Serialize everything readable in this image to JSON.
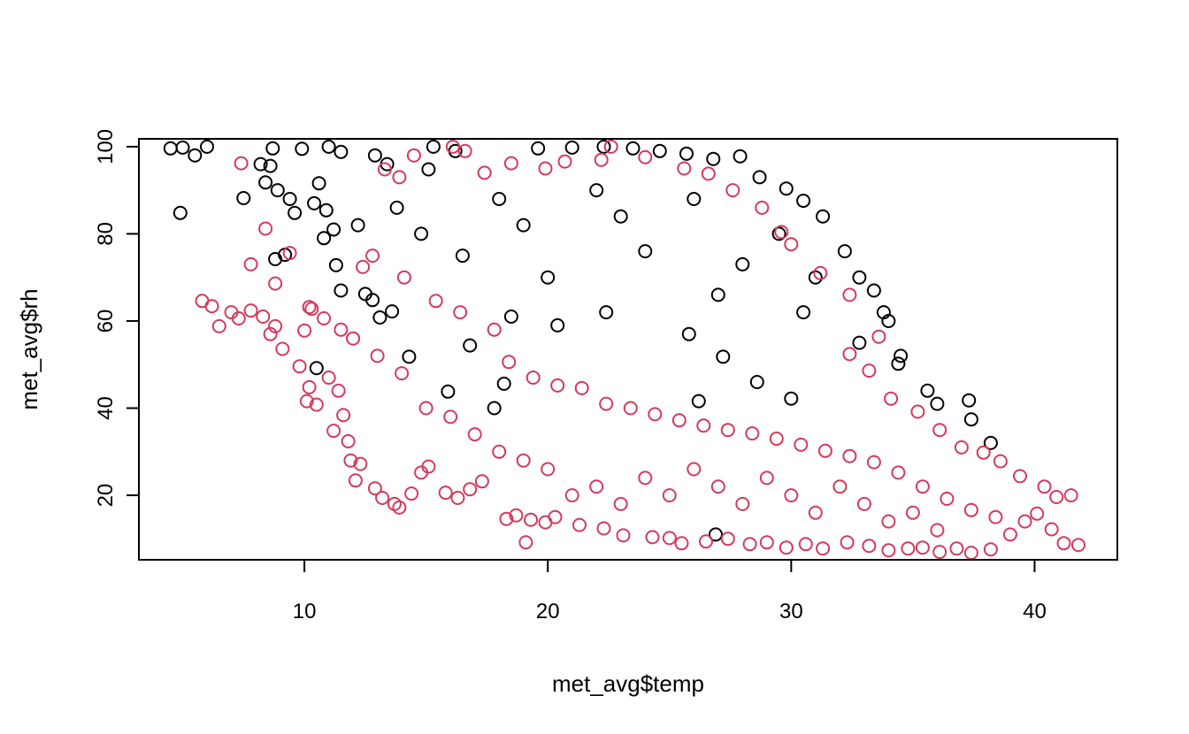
{
  "chart_data": {
    "type": "scatter",
    "title": "",
    "xlabel": "met_avg$temp",
    "ylabel": "met_avg$rh",
    "xlim": [
      3.2,
      43.4
    ],
    "ylim": [
      5.2,
      101.8
    ],
    "x_ticks": [
      10,
      20,
      30,
      40
    ],
    "y_ticks": [
      20,
      40,
      60,
      80,
      100
    ],
    "grid": false,
    "legend": "none",
    "marker": "open-circle",
    "series": [
      {
        "color": "#000000",
        "points": [
          [
            4.5,
            99.6
          ],
          [
            5.0,
            99.8
          ],
          [
            5.5,
            98.0
          ],
          [
            6.0,
            100.0
          ],
          [
            4.9,
            84.8
          ],
          [
            7.5,
            88.2
          ],
          [
            8.2,
            96.0
          ],
          [
            8.7,
            99.6
          ],
          [
            8.6,
            95.6
          ],
          [
            8.4,
            91.8
          ],
          [
            8.9,
            90.0
          ],
          [
            9.4,
            88.0
          ],
          [
            9.9,
            99.5
          ],
          [
            9.6,
            84.8
          ],
          [
            8.8,
            74.2
          ],
          [
            9.2,
            75.2
          ],
          [
            10.4,
            87.0
          ],
          [
            10.6,
            91.6
          ],
          [
            11.0,
            100.0
          ],
          [
            11.5,
            98.8
          ],
          [
            10.9,
            85.4
          ],
          [
            11.2,
            81.0
          ],
          [
            10.8,
            79.0
          ],
          [
            11.3,
            72.8
          ],
          [
            11.5,
            67.0
          ],
          [
            12.5,
            66.2
          ],
          [
            12.8,
            64.8
          ],
          [
            13.1,
            60.8
          ],
          [
            13.6,
            62.2
          ],
          [
            10.5,
            49.2
          ],
          [
            12.9,
            98.0
          ],
          [
            13.4,
            96.0
          ],
          [
            15.3,
            100.0
          ],
          [
            16.2,
            99.0
          ],
          [
            14.3,
            51.8
          ],
          [
            15.9,
            43.8
          ],
          [
            16.8,
            54.4
          ],
          [
            15.1,
            94.8
          ],
          [
            18.2,
            45.6
          ],
          [
            17.8,
            40.0
          ],
          [
            19.6,
            99.6
          ],
          [
            21.0,
            99.8
          ],
          [
            22.3,
            100.0
          ],
          [
            23.5,
            99.6
          ],
          [
            24.6,
            99.0
          ],
          [
            25.7,
            98.4
          ],
          [
            26.8,
            97.2
          ],
          [
            27.9,
            97.8
          ],
          [
            28.7,
            93.0
          ],
          [
            29.8,
            90.4
          ],
          [
            30.5,
            87.6
          ],
          [
            31.3,
            84.0
          ],
          [
            32.2,
            76.0
          ],
          [
            32.8,
            70.0
          ],
          [
            33.4,
            67.0
          ],
          [
            33.8,
            62.0
          ],
          [
            34.0,
            60.0
          ],
          [
            34.5,
            52.0
          ],
          [
            34.4,
            50.2
          ],
          [
            35.6,
            44.0
          ],
          [
            36.0,
            41.0
          ],
          [
            37.3,
            41.8
          ],
          [
            37.4,
            37.4
          ],
          [
            38.2,
            32.0
          ],
          [
            30.0,
            42.2
          ],
          [
            27.2,
            51.8
          ],
          [
            25.8,
            57.0
          ],
          [
            26.2,
            41.6
          ],
          [
            28.6,
            46.0
          ],
          [
            32.8,
            55.0
          ],
          [
            22.4,
            62.0
          ],
          [
            20.4,
            59.0
          ],
          [
            18.5,
            61.0
          ],
          [
            20.0,
            70.0
          ],
          [
            24.0,
            76.0
          ],
          [
            28.0,
            73.0
          ],
          [
            14.8,
            80.0
          ],
          [
            13.8,
            86.0
          ],
          [
            16.5,
            75.0
          ],
          [
            18.0,
            88.0
          ],
          [
            22.0,
            90.0
          ],
          [
            26.0,
            88.0
          ],
          [
            29.5,
            80.0
          ],
          [
            31.0,
            70.0
          ],
          [
            19.0,
            82.0
          ],
          [
            23.0,
            84.0
          ],
          [
            27.0,
            66.0
          ],
          [
            30.5,
            62.0
          ],
          [
            12.2,
            82.0
          ],
          [
            26.9,
            11.0
          ]
        ]
      },
      {
        "color": "#D33A5C",
        "points": [
          [
            5.8,
            64.6
          ],
          [
            6.2,
            63.4
          ],
          [
            6.5,
            58.8
          ],
          [
            7.0,
            62.0
          ],
          [
            7.3,
            60.6
          ],
          [
            7.8,
            62.4
          ],
          [
            8.3,
            61.0
          ],
          [
            8.8,
            58.8
          ],
          [
            9.1,
            53.6
          ],
          [
            8.6,
            57.0
          ],
          [
            7.4,
            96.2
          ],
          [
            7.8,
            73.0
          ],
          [
            8.4,
            81.2
          ],
          [
            8.8,
            68.6
          ],
          [
            9.4,
            75.6
          ],
          [
            9.8,
            49.6
          ],
          [
            10.0,
            57.8
          ],
          [
            10.2,
            63.2
          ],
          [
            10.1,
            41.6
          ],
          [
            10.5,
            40.8
          ],
          [
            10.2,
            44.8
          ],
          [
            11.0,
            47.0
          ],
          [
            11.4,
            44.0
          ],
          [
            11.2,
            34.8
          ],
          [
            11.6,
            38.4
          ],
          [
            11.8,
            32.4
          ],
          [
            11.9,
            28.0
          ],
          [
            12.3,
            27.2
          ],
          [
            12.1,
            23.4
          ],
          [
            12.9,
            21.6
          ],
          [
            13.2,
            19.4
          ],
          [
            13.7,
            18.0
          ],
          [
            13.9,
            17.2
          ],
          [
            14.4,
            20.4
          ],
          [
            14.8,
            25.2
          ],
          [
            15.1,
            26.6
          ],
          [
            15.8,
            20.6
          ],
          [
            16.3,
            19.4
          ],
          [
            16.8,
            21.4
          ],
          [
            17.3,
            23.2
          ],
          [
            18.3,
            14.6
          ],
          [
            18.7,
            15.4
          ],
          [
            19.1,
            9.2
          ],
          [
            19.3,
            14.4
          ],
          [
            19.9,
            13.8
          ],
          [
            20.3,
            15.0
          ],
          [
            21.3,
            13.2
          ],
          [
            22.3,
            12.4
          ],
          [
            23.1,
            10.8
          ],
          [
            24.3,
            10.4
          ],
          [
            25.0,
            10.2
          ],
          [
            25.5,
            9.0
          ],
          [
            26.5,
            9.4
          ],
          [
            27.4,
            10.0
          ],
          [
            28.3,
            8.8
          ],
          [
            29.0,
            9.2
          ],
          [
            29.8,
            8.0
          ],
          [
            30.6,
            8.8
          ],
          [
            31.3,
            7.8
          ],
          [
            32.3,
            9.2
          ],
          [
            33.2,
            8.4
          ],
          [
            34.0,
            7.4
          ],
          [
            34.8,
            7.8
          ],
          [
            35.4,
            8.0
          ],
          [
            36.1,
            7.0
          ],
          [
            36.8,
            7.8
          ],
          [
            37.4,
            6.8
          ],
          [
            38.2,
            7.6
          ],
          [
            39.0,
            11.0
          ],
          [
            39.6,
            14.0
          ],
          [
            40.1,
            15.8
          ],
          [
            40.7,
            12.2
          ],
          [
            41.2,
            9.0
          ],
          [
            41.8,
            8.6
          ],
          [
            40.4,
            22.0
          ],
          [
            40.9,
            19.6
          ],
          [
            41.5,
            20.0
          ],
          [
            39.4,
            24.4
          ],
          [
            38.6,
            27.8
          ],
          [
            37.9,
            29.8
          ],
          [
            37.0,
            31.0
          ],
          [
            36.1,
            35.0
          ],
          [
            35.2,
            39.2
          ],
          [
            34.1,
            42.2
          ],
          [
            33.2,
            48.6
          ],
          [
            32.4,
            52.4
          ],
          [
            13.3,
            94.8
          ],
          [
            13.9,
            93.0
          ],
          [
            14.5,
            98.0
          ],
          [
            16.1,
            100.0
          ],
          [
            16.6,
            99.0
          ],
          [
            17.4,
            94.0
          ],
          [
            18.5,
            96.2
          ],
          [
            19.9,
            95.0
          ],
          [
            20.7,
            96.6
          ],
          [
            22.2,
            97.0
          ],
          [
            22.6,
            100.0
          ],
          [
            24.0,
            97.6
          ],
          [
            25.6,
            95.0
          ],
          [
            26.6,
            93.8
          ],
          [
            27.6,
            90.0
          ],
          [
            28.8,
            86.0
          ],
          [
            29.6,
            80.4
          ],
          [
            30.0,
            77.6
          ],
          [
            31.2,
            71.0
          ],
          [
            32.4,
            66.0
          ],
          [
            33.6,
            56.4
          ],
          [
            12.4,
            72.4
          ],
          [
            12.8,
            75.0
          ],
          [
            14.1,
            70.0
          ],
          [
            15.4,
            64.6
          ],
          [
            16.4,
            62.0
          ],
          [
            17.8,
            58.0
          ],
          [
            18.4,
            50.6
          ],
          [
            19.4,
            47.0
          ],
          [
            20.4,
            45.2
          ],
          [
            21.4,
            44.6
          ],
          [
            22.4,
            41.0
          ],
          [
            23.4,
            40.0
          ],
          [
            24.4,
            38.6
          ],
          [
            25.4,
            37.2
          ],
          [
            26.4,
            36.0
          ],
          [
            27.4,
            35.0
          ],
          [
            28.4,
            34.2
          ],
          [
            29.4,
            33.0
          ],
          [
            30.4,
            31.6
          ],
          [
            31.4,
            30.2
          ],
          [
            32.4,
            29.0
          ],
          [
            33.4,
            27.6
          ],
          [
            34.4,
            25.2
          ],
          [
            35.4,
            22.0
          ],
          [
            36.4,
            19.2
          ],
          [
            37.4,
            16.6
          ],
          [
            38.4,
            15.0
          ],
          [
            21.0,
            20.0
          ],
          [
            22.0,
            22.0
          ],
          [
            23.0,
            18.0
          ],
          [
            24.0,
            24.0
          ],
          [
            25.0,
            20.0
          ],
          [
            26.0,
            26.0
          ],
          [
            27.0,
            22.0
          ],
          [
            28.0,
            18.0
          ],
          [
            29.0,
            24.0
          ],
          [
            30.0,
            20.0
          ],
          [
            31.0,
            16.0
          ],
          [
            32.0,
            22.0
          ],
          [
            33.0,
            18.0
          ],
          [
            34.0,
            14.0
          ],
          [
            35.0,
            16.0
          ],
          [
            36.0,
            12.0
          ],
          [
            15.0,
            40.0
          ],
          [
            16.0,
            38.0
          ],
          [
            17.0,
            34.0
          ],
          [
            18.0,
            30.0
          ],
          [
            19.0,
            28.0
          ],
          [
            20.0,
            26.0
          ],
          [
            14.0,
            48.0
          ],
          [
            13.0,
            52.0
          ],
          [
            12.0,
            56.0
          ],
          [
            11.5,
            58.0
          ],
          [
            10.8,
            60.6
          ],
          [
            10.3,
            62.8
          ]
        ]
      }
    ]
  }
}
